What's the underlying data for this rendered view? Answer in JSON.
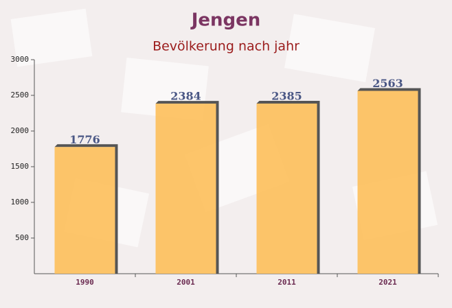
{
  "chart_data": {
    "type": "bar",
    "title": "Jengen",
    "subtitle": "Bevölkerung nach jahr",
    "categories": [
      "1990",
      "2001",
      "2011",
      "2021"
    ],
    "values": [
      1776,
      2384,
      2385,
      2563
    ],
    "color": "#fdbf5a",
    "ylim": [
      0,
      3000
    ],
    "yticks": [
      500,
      1000,
      1500,
      2000,
      2500,
      3000
    ]
  }
}
